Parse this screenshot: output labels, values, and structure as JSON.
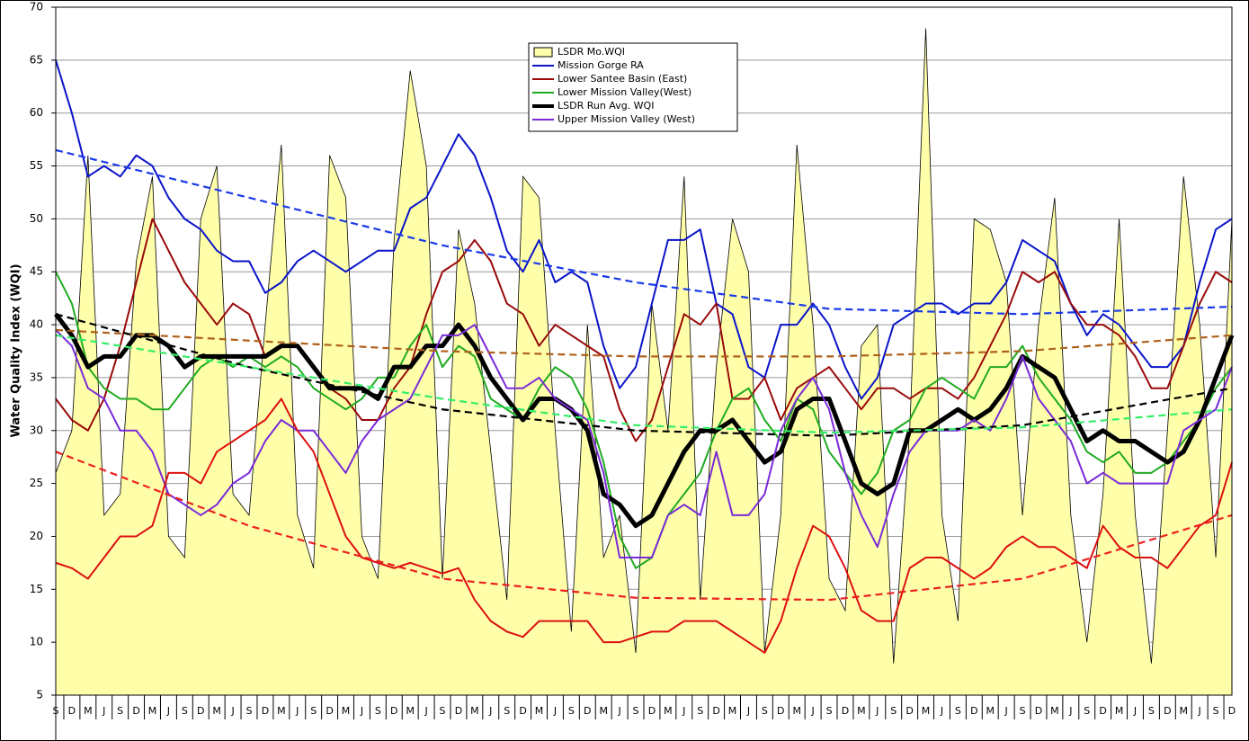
{
  "chart_data": {
    "type": "line",
    "y_label": "Water Quality Index (WQI)",
    "categories": [
      "S",
      "D",
      "M",
      "J",
      "S",
      "D",
      "M",
      "J",
      "S",
      "D",
      "M",
      "J",
      "S",
      "D",
      "M",
      "J",
      "S",
      "D",
      "M",
      "J",
      "S",
      "D",
      "M",
      "J",
      "S",
      "D",
      "M",
      "J",
      "S",
      "D",
      "M",
      "J",
      "S",
      "D",
      "M",
      "J",
      "S",
      "D",
      "M",
      "J",
      "S",
      "D",
      "M",
      "J",
      "S",
      "D",
      "M",
      "J",
      "S",
      "D",
      "M",
      "J",
      "S",
      "D",
      "M",
      "J",
      "S",
      "D",
      "M",
      "J",
      "S",
      "D",
      "M",
      "J",
      "S",
      "D",
      "M",
      "J",
      "S",
      "D",
      "M",
      "J",
      "S",
      "D"
    ],
    "ylim": [
      5,
      70
    ],
    "yticks": [
      5,
      10,
      15,
      20,
      25,
      30,
      35,
      40,
      45,
      50,
      55,
      60,
      65,
      70
    ],
    "grid": true,
    "series": [
      {
        "name": "LSDR Mo.WQI",
        "kind": "area",
        "color": "#ffffaa",
        "values": [
          26,
          30,
          56,
          22,
          24,
          46,
          54,
          20,
          18,
          50,
          55,
          24,
          22,
          40,
          57,
          22,
          17,
          56,
          52,
          20,
          16,
          48,
          64,
          55,
          16,
          49,
          42,
          28,
          14,
          54,
          52,
          30,
          11,
          40,
          18,
          22,
          9,
          42,
          30,
          54,
          14,
          36,
          50,
          45,
          9,
          22,
          57,
          40,
          16,
          13,
          38,
          40,
          8,
          30,
          68,
          22,
          12,
          50,
          49,
          44,
          22,
          40,
          52,
          22,
          10,
          24,
          50,
          22,
          8,
          30,
          54,
          40,
          18,
          50
        ]
      },
      {
        "name": "Mission Gorge RA",
        "color": "#0a14c8",
        "width": 2,
        "values": [
          65,
          60,
          54,
          55,
          54,
          56,
          55,
          52,
          50,
          49,
          47,
          46,
          46,
          43,
          44,
          46,
          47,
          46,
          45,
          46,
          47,
          47,
          51,
          52,
          55,
          58,
          56,
          52,
          47,
          45,
          48,
          44,
          45,
          44,
          38,
          34,
          36,
          42,
          48,
          48,
          49,
          42,
          41,
          36,
          35,
          40,
          40,
          42,
          40,
          36,
          33,
          35,
          40,
          41,
          42,
          42,
          41,
          42,
          42,
          44,
          48,
          47,
          46,
          42,
          39,
          41,
          40,
          38,
          36,
          36,
          38,
          44,
          49,
          50
        ]
      },
      {
        "name": "Lower Santee Basin (East)",
        "color": "#9a0a0a",
        "width": 2,
        "values": [
          33,
          31,
          30,
          33,
          38,
          44,
          50,
          47,
          44,
          42,
          40,
          42,
          41,
          37,
          38,
          38,
          36,
          34,
          33,
          31,
          31,
          34,
          36,
          41,
          45,
          46,
          48,
          46,
          42,
          41,
          38,
          40,
          39,
          38,
          37,
          32,
          29,
          31,
          36,
          41,
          40,
          42,
          33,
          33,
          35,
          31,
          34,
          35,
          36,
          34,
          32,
          34,
          34,
          33,
          34,
          34,
          33,
          35,
          38,
          41,
          45,
          44,
          45,
          42,
          40,
          40,
          39,
          37,
          34,
          34,
          38,
          42,
          45,
          44
        ]
      },
      {
        "name": "Lower Mission Valley(West)",
        "color": "#20aa20",
        "width": 2,
        "values": [
          45,
          42,
          36,
          34,
          33,
          33,
          32,
          32,
          34,
          36,
          37,
          36,
          37,
          36,
          37,
          36,
          34,
          33,
          32,
          33,
          35,
          35,
          38,
          40,
          36,
          38,
          37,
          33,
          32,
          31,
          34,
          36,
          35,
          32,
          27,
          20,
          17,
          18,
          22,
          24,
          26,
          30,
          33,
          34,
          31,
          29,
          33,
          32,
          28,
          26,
          24,
          26,
          30,
          31,
          34,
          35,
          34,
          33,
          36,
          36,
          38,
          35,
          33,
          31,
          28,
          27,
          28,
          26,
          26,
          27,
          29,
          31,
          34,
          36
        ]
      },
      {
        "name": "LSDR Run Avg. WQI",
        "color": "#000000",
        "width": 5,
        "values": [
          41,
          39,
          36,
          37,
          37,
          39,
          39,
          38,
          36,
          37,
          37,
          37,
          37,
          37,
          38,
          38,
          36,
          34,
          34,
          34,
          33,
          36,
          36,
          38,
          38,
          40,
          38,
          35,
          33,
          31,
          33,
          33,
          32,
          30,
          24,
          23,
          21,
          22,
          25,
          28,
          30,
          30,
          31,
          29,
          27,
          28,
          32,
          33,
          33,
          29,
          25,
          24,
          25,
          30,
          30,
          31,
          32,
          31,
          32,
          34,
          37,
          36,
          35,
          32,
          29,
          30,
          29,
          29,
          28,
          27,
          28,
          31,
          35,
          39
        ]
      },
      {
        "name": "Upper Mission Valley (West)",
        "color": "#7a2ad8",
        "width": 2,
        "values": [
          39.5,
          38,
          34,
          33,
          30,
          30,
          28,
          24,
          23,
          22,
          23,
          25,
          26,
          29,
          31,
          30,
          30,
          28,
          26,
          29,
          31,
          32,
          33,
          36,
          39,
          39,
          40,
          37,
          34,
          34,
          35,
          33,
          32,
          31,
          26,
          18,
          18,
          18,
          22,
          23,
          22,
          28,
          22,
          22,
          24,
          30,
          33,
          35,
          32,
          26,
          22,
          19,
          24,
          28,
          30,
          30,
          30,
          31,
          30,
          33,
          37,
          33,
          31,
          29,
          25,
          26,
          25,
          25,
          25,
          25,
          30,
          31,
          32,
          36
        ]
      },
      {
        "color": "#dd1010",
        "width": 2,
        "values": [
          17.5,
          17,
          16,
          18,
          20,
          20,
          21,
          26,
          26,
          25,
          28,
          29,
          30,
          31,
          33,
          30,
          28,
          24,
          20,
          18,
          17.5,
          17,
          17.5,
          17,
          16.5,
          17,
          14,
          12,
          11,
          10.5,
          12,
          12,
          12,
          12,
          10,
          10,
          10.5,
          11,
          11,
          12,
          12,
          12,
          11,
          10,
          9,
          12,
          17,
          21,
          20,
          17,
          13,
          12,
          12,
          17,
          18,
          18,
          17,
          16,
          17,
          19,
          20,
          19,
          19,
          18,
          17,
          21,
          19,
          18,
          18,
          17,
          19,
          21,
          22,
          27
        ]
      }
    ],
    "trends": [
      {
        "color": "#1a3ae8",
        "x": [
          0,
          12,
          24,
          36,
          48,
          60,
          73
        ],
        "values": [
          56.5,
          52,
          47.5,
          44,
          41.5,
          41,
          41.7
        ]
      },
      {
        "color": "#b0601a",
        "x": [
          0,
          12,
          24,
          36,
          48,
          60,
          73
        ],
        "values": [
          39.5,
          38.5,
          37.5,
          37,
          37,
          37.5,
          39
        ]
      },
      {
        "color": "#000000",
        "x": [
          0,
          12,
          24,
          36,
          48,
          60,
          73
        ],
        "values": [
          41,
          36,
          32,
          30,
          29.5,
          30.5,
          34
        ]
      },
      {
        "color": "#33ee66",
        "x": [
          0,
          12,
          24,
          36,
          48,
          60,
          73
        ],
        "values": [
          39,
          36,
          33,
          30.5,
          29.8,
          30.3,
          32
        ]
      },
      {
        "color": "#ee2020",
        "x": [
          0,
          12,
          24,
          36,
          48,
          60,
          73
        ],
        "values": [
          28,
          21,
          16,
          14.2,
          14,
          16,
          22
        ]
      }
    ]
  }
}
